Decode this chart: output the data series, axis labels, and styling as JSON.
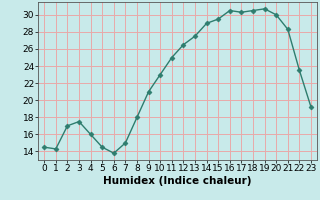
{
  "x": [
    0,
    1,
    2,
    3,
    4,
    5,
    6,
    7,
    8,
    9,
    10,
    11,
    12,
    13,
    14,
    15,
    16,
    17,
    18,
    19,
    20,
    21,
    22,
    23
  ],
  "y": [
    14.5,
    14.3,
    17.0,
    17.5,
    16.0,
    14.5,
    13.8,
    15.0,
    18.0,
    21.0,
    23.0,
    25.0,
    26.5,
    27.5,
    29.0,
    29.5,
    30.5,
    30.3,
    30.5,
    30.7,
    30.0,
    28.3,
    23.5,
    19.2
  ],
  "line_color": "#2e7d6e",
  "marker": "D",
  "marker_size": 2.5,
  "bg_color": "#c8eaea",
  "grid_color": "#e8aaaa",
  "xlabel": "Humidex (Indice chaleur)",
  "xlim": [
    -0.5,
    23.5
  ],
  "ylim": [
    13,
    31.5
  ],
  "yticks": [
    14,
    16,
    18,
    20,
    22,
    24,
    26,
    28,
    30
  ],
  "xticks": [
    0,
    1,
    2,
    3,
    4,
    5,
    6,
    7,
    8,
    9,
    10,
    11,
    12,
    13,
    14,
    15,
    16,
    17,
    18,
    19,
    20,
    21,
    22,
    23
  ],
  "xlabel_fontsize": 7.5,
  "tick_fontsize": 6.5
}
